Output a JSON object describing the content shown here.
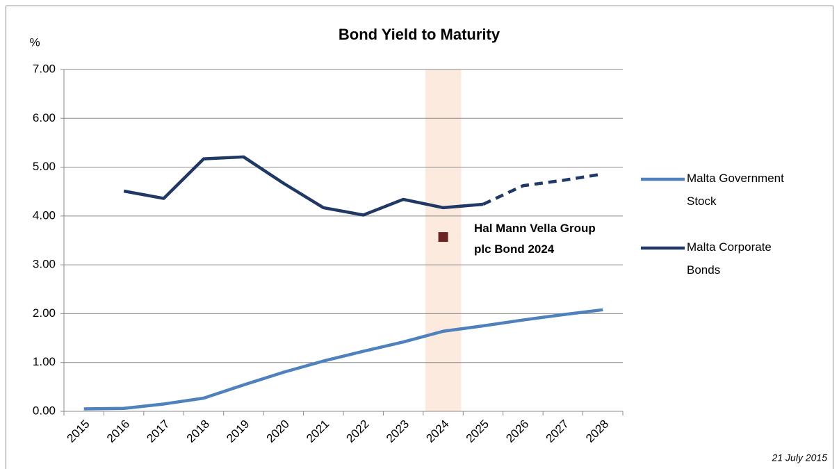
{
  "chart_data": {
    "type": "line",
    "title": "Bond Yield to Maturity",
    "y_label": "%",
    "categories": [
      "2015",
      "2016",
      "2017",
      "2018",
      "2019",
      "2020",
      "2021",
      "2022",
      "2023",
      "2024",
      "2025",
      "2026",
      "2027",
      "2028"
    ],
    "series": [
      {
        "name": "Malta Government Stock",
        "color": "#4f81bd",
        "values": [
          0.05,
          0.06,
          0.15,
          0.27,
          0.54,
          0.8,
          1.03,
          1.23,
          1.42,
          1.64,
          1.75,
          1.87,
          1.98,
          2.08
        ]
      },
      {
        "name": "Malta Corporate Bonds",
        "color": "#1f3864",
        "dashed_from": "2025",
        "values": [
          null,
          4.51,
          4.36,
          5.17,
          5.21,
          4.67,
          4.17,
          4.02,
          4.34,
          4.17,
          4.24,
          4.62,
          4.73,
          4.86
        ]
      }
    ],
    "highlight": {
      "category": "2024",
      "color": "#fbe5d6"
    },
    "point": {
      "label": "Hal Mann Vella Group plc Bond 2024",
      "category": "2024",
      "value": 3.57,
      "color": "#6b2222"
    },
    "ylim": [
      0,
      7
    ],
    "yticks": [
      {
        "value": 0,
        "label": "0.00"
      },
      {
        "value": 1,
        "label": "1.00"
      },
      {
        "value": 2,
        "label": "2.00"
      },
      {
        "value": 3,
        "label": "3.00"
      },
      {
        "value": 4,
        "label": "4.00"
      },
      {
        "value": 5,
        "label": "5.00"
      },
      {
        "value": 6,
        "label": "6.00"
      },
      {
        "value": 7,
        "label": "7.00"
      }
    ],
    "grid": true,
    "legend": "right",
    "date_note": "21 July 2015"
  }
}
